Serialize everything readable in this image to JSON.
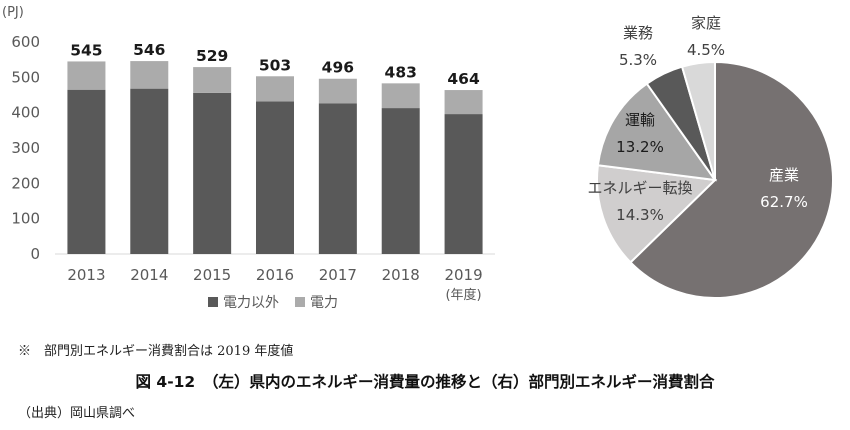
{
  "chart_data": [
    {
      "type": "bar",
      "stacked": true,
      "ylabel": "(PJ)",
      "xlabel": "(年度)",
      "ylim": [
        0,
        600
      ],
      "yticks": [
        0,
        100,
        200,
        300,
        400,
        500,
        600
      ],
      "grid": false,
      "legend_position": "bottom",
      "categories": [
        "2013",
        "2014",
        "2015",
        "2016",
        "2017",
        "2018",
        "2019"
      ],
      "totals": [
        545,
        546,
        529,
        503,
        496,
        483,
        464
      ],
      "series": [
        {
          "name": "電力以外",
          "color": "#595959",
          "values": [
            465,
            468,
            456,
            432,
            426,
            413,
            396
          ]
        },
        {
          "name": "電力",
          "color": "#ababab",
          "values": [
            80,
            78,
            73,
            71,
            70,
            70,
            68
          ]
        }
      ]
    },
    {
      "type": "pie",
      "slices": [
        {
          "label": "産業",
          "value": 62.7,
          "value_label": "62.7%",
          "color": "#767171"
        },
        {
          "label": "エネルギー転換",
          "value": 14.3,
          "value_label": "14.3%",
          "color": "#d0cece"
        },
        {
          "label": "運輸",
          "value": 13.2,
          "value_label": "13.2%",
          "color": "#a6a6a6"
        },
        {
          "label": "業務",
          "value": 5.3,
          "value_label": "5.3%",
          "color": "#595959"
        },
        {
          "label": "家庭",
          "value": 4.5,
          "value_label": "4.5%",
          "color": "#d9d9d9"
        }
      ]
    }
  ],
  "note": "※　部門別エネルギー消費割合は 2019 年度値",
  "caption": "図 4-12　（左）県内のエネルギー消費量の推移と（右）部門別エネルギー消費割合",
  "source": "（出典）岡山県調べ"
}
